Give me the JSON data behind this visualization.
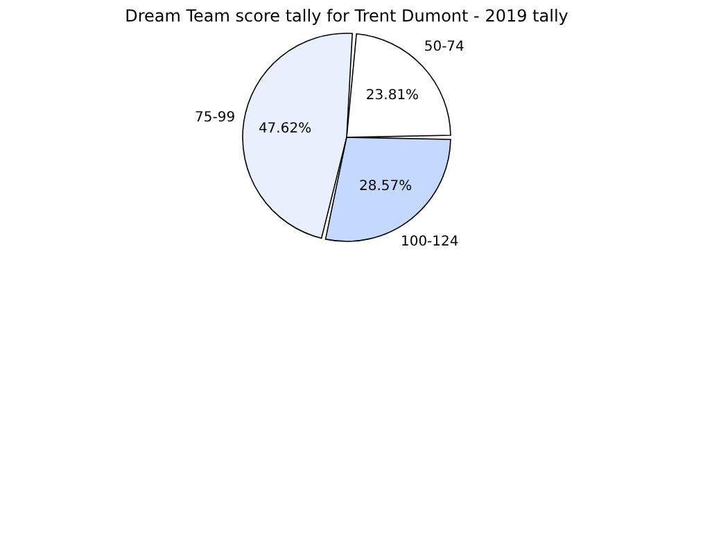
{
  "chart_data": {
    "type": "pie",
    "title": "Dream Team score tally for Trent Dumont - 2019 tally",
    "categories": [
      "50-74",
      "75-99",
      "100-124"
    ],
    "values": [
      23.81,
      47.62,
      28.57
    ],
    "value_labels": [
      "23.81%",
      "47.62%",
      "28.57%"
    ],
    "colors": [
      "#ffffff",
      "#e8effd",
      "#c5d8fd"
    ]
  }
}
